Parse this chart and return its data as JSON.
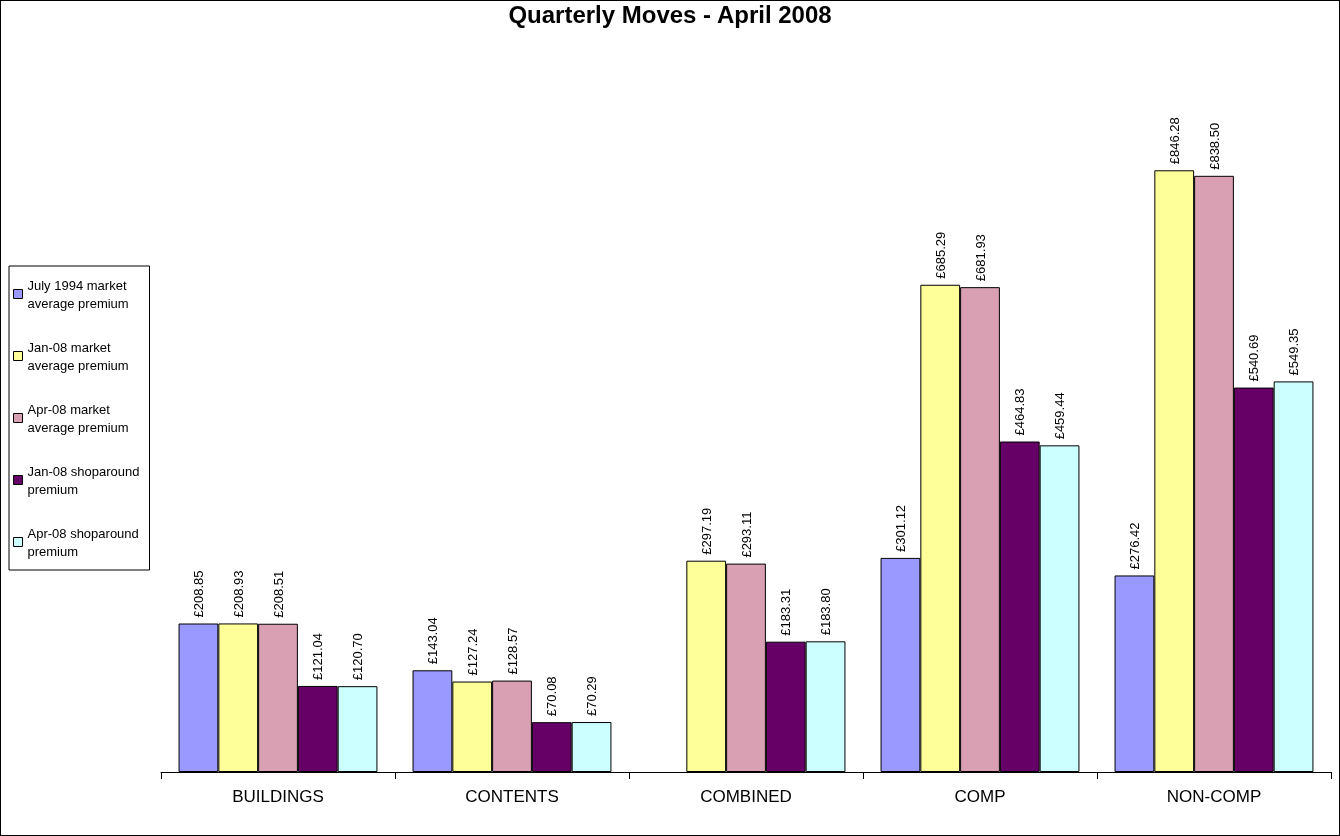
{
  "chart_data": {
    "type": "bar",
    "title": "Quarterly Moves - April 2008",
    "categories": [
      "BUILDINGS",
      "CONTENTS",
      "COMBINED",
      "COMP",
      "NON-COMP"
    ],
    "series": [
      {
        "name": "July 1994 market average premium",
        "color": "#9999ff",
        "values": [
          208.85,
          143.04,
          null,
          301.12,
          276.42
        ],
        "value_labels": [
          "£208.85",
          "£143.04",
          null,
          "£301.12",
          "£276.42"
        ]
      },
      {
        "name": "Jan-08 market average premium",
        "color": "#ffff99",
        "values": [
          208.93,
          127.24,
          297.19,
          685.29,
          846.28
        ],
        "value_labels": [
          "£208.93",
          "£127.24",
          "£297.19",
          "£685.29",
          "£846.28"
        ]
      },
      {
        "name": "Apr-08 market average premium",
        "color": "#d9a0b3",
        "values": [
          208.51,
          128.57,
          293.11,
          681.93,
          838.5
        ],
        "value_labels": [
          "£208.51",
          "£128.57",
          "£293.11",
          "£681.93",
          "£838.50"
        ]
      },
      {
        "name": "Jan-08 shoparound premium",
        "color": "#660066",
        "values": [
          121.04,
          70.08,
          183.31,
          464.83,
          540.69
        ],
        "value_labels": [
          "£121.04",
          "£70.08",
          "£183.31",
          "£464.83",
          "£540.69"
        ]
      },
      {
        "name": "Apr-08 shoparound premium",
        "color": "#ccffff",
        "values": [
          120.7,
          70.29,
          183.8,
          459.44,
          549.35
        ],
        "value_labels": [
          "£120.70",
          "£70.29",
          "£183.80",
          "£459.44",
          "£549.35"
        ]
      }
    ],
    "legend": "left",
    "grid": false
  }
}
